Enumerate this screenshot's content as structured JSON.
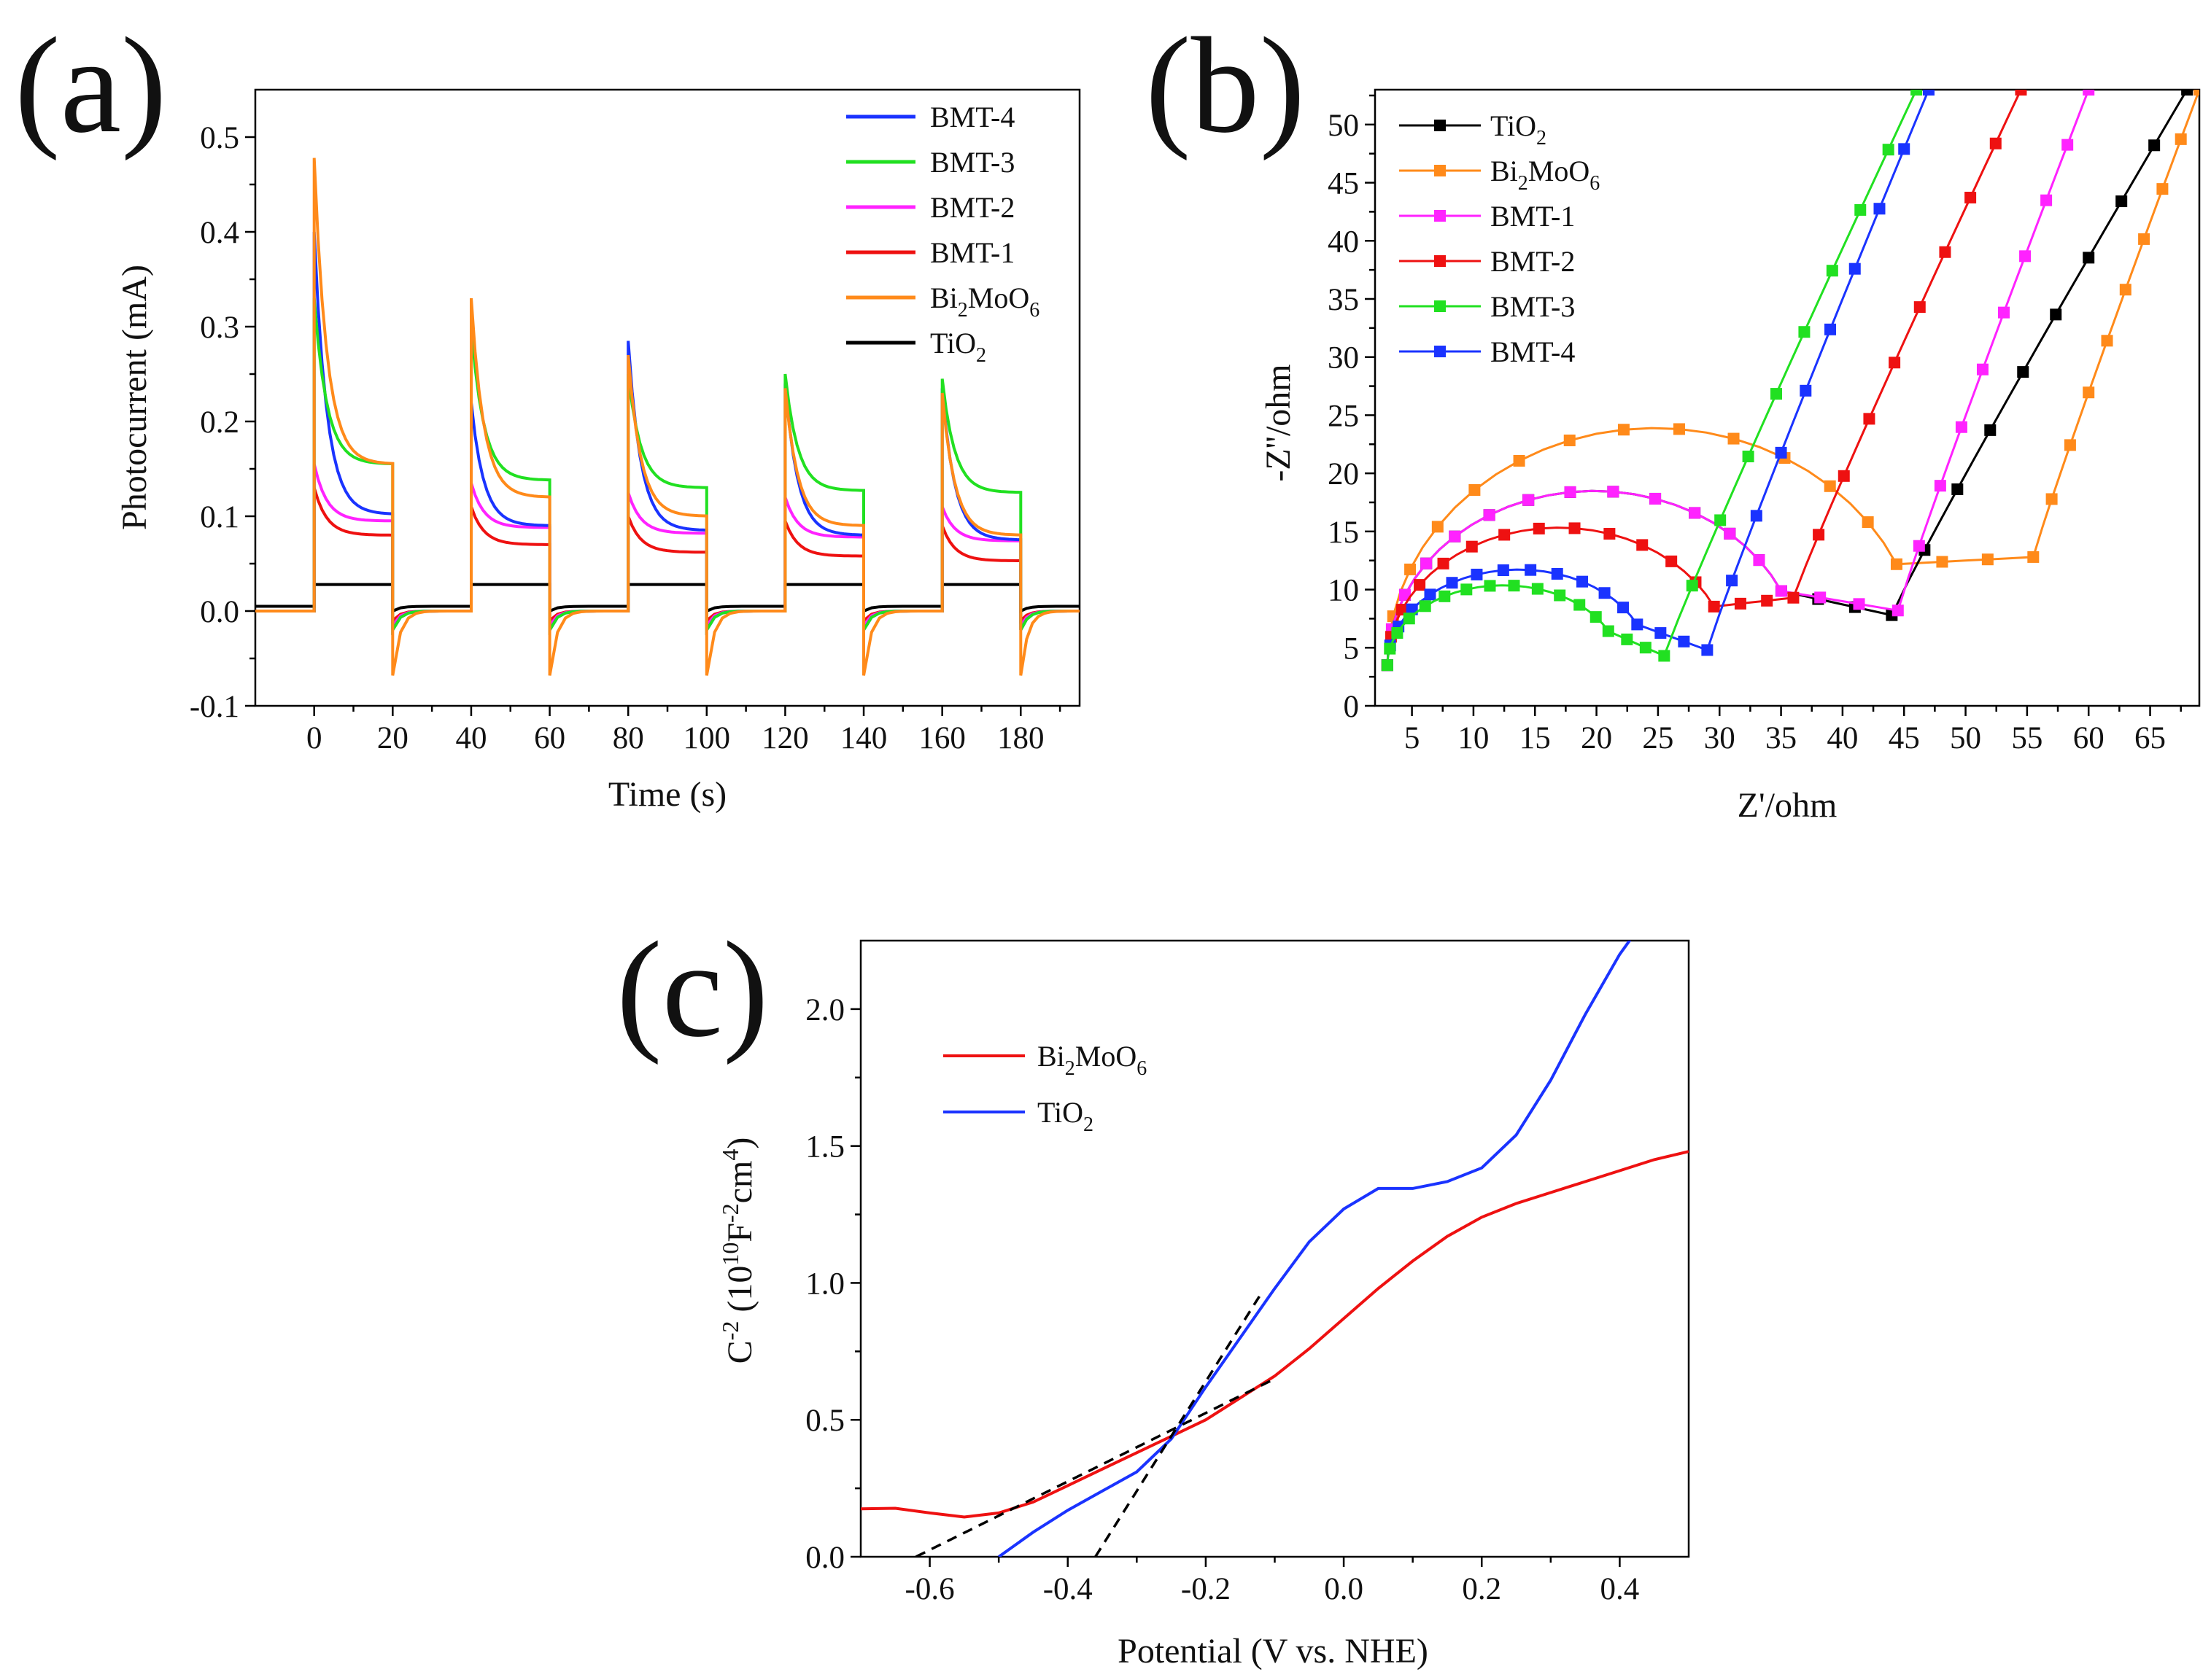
{
  "figure": {
    "panels": [
      "(a)",
      "(b)",
      "(c)"
    ]
  },
  "chart_data": [
    {
      "id": "a",
      "type": "line",
      "panel_label": "(a)",
      "title": "",
      "xlabel": "Time (s)",
      "ylabel": "Photocurrent (mA)",
      "xlim": [
        -15,
        195
      ],
      "ylim": [
        -0.1,
        0.55
      ],
      "xticks": [
        0,
        20,
        40,
        60,
        80,
        100,
        120,
        140,
        160,
        180
      ],
      "yticks": [
        -0.1,
        0.0,
        0.1,
        0.2,
        0.3,
        0.4,
        0.5
      ],
      "ytick_labels": [
        "-0.1",
        "0.0",
        "0.1",
        "0.2",
        "0.3",
        "0.4",
        "0.5"
      ],
      "legend_position": "top-right",
      "on_off_cycles": [
        [
          0,
          20
        ],
        [
          40,
          60
        ],
        [
          80,
          100
        ],
        [
          120,
          140
        ],
        [
          160,
          180
        ]
      ],
      "series": [
        {
          "name": "BMT-4",
          "sub": "",
          "name_tail": "",
          "color": "#1a33ff",
          "dark": 0.0,
          "peaks": [
            0.4,
            0.22,
            0.285,
            0.24,
            0.235
          ],
          "ends": [
            0.102,
            0.09,
            0.085,
            0.08,
            0.075
          ],
          "undershoot": -0.02
        },
        {
          "name": "BMT-3",
          "sub": "",
          "name_tail": "",
          "color": "#21e021",
          "dark": 0.0,
          "peaks": [
            0.33,
            0.3,
            0.25,
            0.25,
            0.245
          ],
          "ends": [
            0.155,
            0.138,
            0.13,
            0.127,
            0.125
          ],
          "undershoot": -0.02
        },
        {
          "name": "BMT-2",
          "sub": "",
          "name_tail": "",
          "color": "#ff22ff",
          "dark": 0.0,
          "peaks": [
            0.155,
            0.135,
            0.125,
            0.12,
            0.11
          ],
          "ends": [
            0.095,
            0.088,
            0.082,
            0.078,
            0.074
          ],
          "undershoot": -0.015
        },
        {
          "name": "BMT-1",
          "sub": "",
          "name_tail": "",
          "color": "#ee1111",
          "dark": 0.0,
          "peaks": [
            0.13,
            0.11,
            0.1,
            0.095,
            0.09
          ],
          "ends": [
            0.08,
            0.07,
            0.062,
            0.058,
            0.053
          ],
          "undershoot": -0.01
        },
        {
          "name": "Bi",
          "sub": "2",
          "name_tail": "MoO6",
          "color": "#ff8a1a",
          "dark": 0.0,
          "peaks": [
            0.478,
            0.33,
            0.27,
            0.235,
            0.23
          ],
          "ends": [
            0.155,
            0.12,
            0.1,
            0.09,
            0.08
          ],
          "undershoot": -0.068
        },
        {
          "name": "TiO",
          "sub": "2",
          "name_tail": "",
          "color": "#000000",
          "dark": 0.005,
          "peaks": [
            0.028,
            0.028,
            0.028,
            0.028,
            0.028
          ],
          "ends": [
            0.028,
            0.028,
            0.028,
            0.028,
            0.028
          ],
          "undershoot": 0.0
        }
      ]
    },
    {
      "id": "b",
      "type": "scatter",
      "panel_label": "(b)",
      "title": "",
      "xlabel": "Z'/ohm",
      "ylabel": "-Z''/ohm",
      "xlim": [
        2,
        69
      ],
      "ylim": [
        0,
        53
      ],
      "xticks": [
        5,
        10,
        15,
        20,
        25,
        30,
        35,
        40,
        45,
        50,
        55,
        60,
        65
      ],
      "yticks": [
        0,
        5,
        10,
        15,
        20,
        25,
        30,
        35,
        40,
        45,
        50
      ],
      "legend_position": "top-left",
      "series": [
        {
          "name": "TiO",
          "sub": "2",
          "name_tail": "",
          "color": "#000000",
          "x0": 3,
          "radius": 20.5,
          "min_x": 44,
          "min_y": 7.8,
          "tail_end": [
            68,
            53
          ]
        },
        {
          "name": "Bi",
          "sub": "2",
          "name_tail": "MoO6",
          "color": "#ff8a1a",
          "x0": 3,
          "radius": 26.5,
          "min_x": 55.5,
          "min_y": 12.8,
          "tail_end": [
            69,
            53
          ]
        },
        {
          "name": "BMT-1",
          "sub": "",
          "name_tail": "",
          "color": "#ff22ff",
          "x0": 3,
          "radius": 20.5,
          "min_x": 44.5,
          "min_y": 8.2,
          "tail_end": [
            60,
            53
          ]
        },
        {
          "name": "BMT-2",
          "sub": "",
          "name_tail": "",
          "color": "#ee1111",
          "x0": 3,
          "radius": 17,
          "min_x": 36,
          "min_y": 9.3,
          "tail_end": [
            54.5,
            53
          ]
        },
        {
          "name": "BMT-3",
          "sub": "",
          "name_tail": "",
          "color": "#21e021",
          "x0": 3,
          "radius": 11.5,
          "min_x": 25.5,
          "min_y": 4.3,
          "tail_end": [
            46,
            53
          ]
        },
        {
          "name": "BMT-4",
          "sub": "",
          "name_tail": "",
          "color": "#1a33ff",
          "x0": 3,
          "radius": 13,
          "min_x": 29,
          "min_y": 4.8,
          "tail_end": [
            47,
            53
          ]
        }
      ]
    },
    {
      "id": "c",
      "type": "line",
      "panel_label": "(c)",
      "title": "",
      "xlabel": "Potential (V vs. NHE)",
      "ylabel": "C-2 (1010F-2cm4)",
      "ylabel_parts": {
        "base": "C",
        "exp1": "-2",
        "mid": " (10",
        "exp2": "10",
        "mid2": "F",
        "exp3": "-2",
        "mid3": "cm",
        "exp4": "4",
        "end": ")"
      },
      "xlim": [
        -0.7,
        0.5
      ],
      "ylim": [
        0,
        2.25
      ],
      "xticks": [
        -0.6,
        -0.4,
        -0.2,
        0.0,
        0.2,
        0.4
      ],
      "xtick_labels": [
        "-0.6",
        "-0.4",
        "-0.2",
        "0.0",
        "0.2",
        "0.4"
      ],
      "yticks": [
        0.0,
        0.5,
        1.0,
        1.5,
        2.0
      ],
      "ytick_labels": [
        "0.0",
        "0.5",
        "1.0",
        "1.5",
        "2.0"
      ],
      "legend_position": "top-left",
      "series": [
        {
          "name": "Bi",
          "sub": "2",
          "name_tail": "MoO6",
          "color": "#ee1111",
          "x": [
            -0.7,
            -0.65,
            -0.6,
            -0.55,
            -0.5,
            -0.45,
            -0.4,
            -0.35,
            -0.3,
            -0.25,
            -0.2,
            -0.15,
            -0.1,
            -0.05,
            0.0,
            0.05,
            0.1,
            0.15,
            0.2,
            0.25,
            0.3,
            0.35,
            0.4,
            0.45,
            0.5
          ],
          "y": [
            0.175,
            0.177,
            0.16,
            0.145,
            0.16,
            0.2,
            0.26,
            0.32,
            0.38,
            0.44,
            0.5,
            0.58,
            0.66,
            0.76,
            0.87,
            0.98,
            1.08,
            1.17,
            1.24,
            1.29,
            1.33,
            1.37,
            1.41,
            1.45,
            1.48
          ]
        },
        {
          "name": "TiO",
          "sub": "2",
          "name_tail": "",
          "color": "#1a33ff",
          "x": [
            -0.5,
            -0.45,
            -0.4,
            -0.35,
            -0.3,
            -0.25,
            -0.2,
            -0.15,
            -0.1,
            -0.05,
            0.0,
            0.05,
            0.1,
            0.15,
            0.2,
            0.25,
            0.3,
            0.35,
            0.4,
            0.42
          ],
          "y": [
            0.0,
            0.09,
            0.17,
            0.24,
            0.31,
            0.43,
            0.62,
            0.8,
            0.98,
            1.15,
            1.27,
            1.345,
            1.345,
            1.37,
            1.42,
            1.54,
            1.74,
            1.98,
            2.2,
            2.27
          ]
        }
      ],
      "fit_lines": [
        {
          "name": "Bi2MoO6 tangent",
          "x": [
            -0.62,
            -0.1
          ],
          "y": [
            0.0,
            0.65
          ]
        },
        {
          "name": "TiO2 tangent",
          "x": [
            -0.36,
            -0.12
          ],
          "y": [
            0.0,
            0.96
          ]
        }
      ]
    }
  ]
}
